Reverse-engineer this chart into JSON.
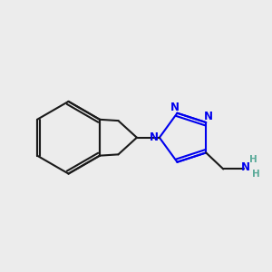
{
  "background_color": "#ececec",
  "bond_color": "#1a1a1a",
  "nitrogen_color": "#0000ee",
  "nh2_n_color": "#0000ee",
  "h_color": "#5aaa99",
  "line_width": 1.5,
  "dbo": 0.055,
  "figsize": [
    3.0,
    3.0
  ],
  "dpi": 100,
  "xlim": [
    0.0,
    8.5
  ],
  "ylim": [
    1.5,
    8.0
  ]
}
